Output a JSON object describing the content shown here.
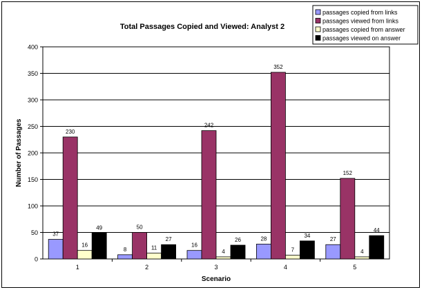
{
  "chart_data": {
    "type": "bar",
    "title": "Total Passages Copied and Viewed: Analyst 2",
    "xlabel": "Scenario",
    "ylabel": "Number of Passages",
    "categories": [
      "1",
      "2",
      "3",
      "4",
      "5"
    ],
    "ylim": [
      0,
      400
    ],
    "yticks": [
      "0",
      "50",
      "100",
      "150",
      "200",
      "250",
      "300",
      "350",
      "400"
    ],
    "grid": true,
    "legend_position": "top-right",
    "series": [
      {
        "name": "passages copied from links",
        "color": "#9999ff",
        "values": [
          37,
          8,
          16,
          28,
          27
        ]
      },
      {
        "name": "passages viewed from links",
        "color": "#993366",
        "values": [
          230,
          50,
          242,
          352,
          152
        ]
      },
      {
        "name": "passages copied from answer",
        "color": "#ffffcc",
        "values": [
          16,
          11,
          4,
          7,
          4
        ]
      },
      {
        "name": "passages viewed on answer",
        "color": "#000000",
        "values": [
          49,
          27,
          26,
          34,
          44
        ]
      }
    ]
  }
}
